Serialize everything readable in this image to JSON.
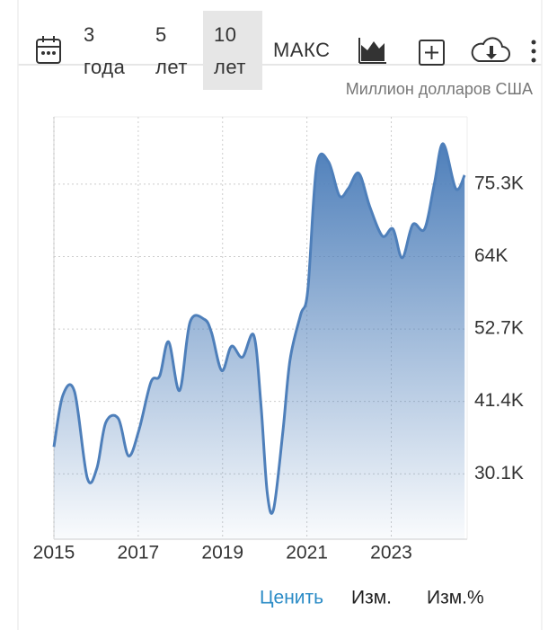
{
  "toolbar": {
    "ranges": [
      [
        "3",
        "года"
      ],
      [
        "5",
        "лет"
      ],
      [
        "10",
        "лет"
      ]
    ],
    "max": "МАКС"
  },
  "chart_data": {
    "type": "area",
    "unit_label": "Миллион долларов США",
    "color": "#4e7fba",
    "x": [
      2015.0,
      2015.21,
      2015.49,
      2015.79,
      2016.02,
      2016.23,
      2016.53,
      2016.77,
      2017.02,
      2017.3,
      2017.51,
      2017.72,
      2017.98,
      2018.23,
      2018.57,
      2018.74,
      2018.98,
      2019.21,
      2019.47,
      2019.74,
      2019.91,
      2020.06,
      2020.21,
      2020.43,
      2020.6,
      2020.85,
      2021.02,
      2021.23,
      2021.51,
      2021.77,
      2021.98,
      2022.23,
      2022.49,
      2022.79,
      2023.04,
      2023.26,
      2023.51,
      2023.79,
      2024.02,
      2024.23,
      2024.53,
      2024.74
    ],
    "values": [
      34300,
      42300,
      42900,
      29500,
      31000,
      38100,
      38700,
      32900,
      37000,
      44400,
      45400,
      50700,
      43100,
      53800,
      54200,
      52100,
      46200,
      50000,
      48300,
      51700,
      40900,
      27100,
      24600,
      36700,
      47900,
      54900,
      58700,
      78100,
      78800,
      73500,
      74600,
      77000,
      71800,
      67200,
      68300,
      63800,
      69000,
      68300,
      75300,
      81600,
      74600,
      76700
    ],
    "xlim": [
      2015,
      2024.8
    ],
    "xticks": [
      2015,
      2017,
      2019,
      2021,
      2023
    ],
    "ylim": [
      19900,
      85800
    ],
    "yticks": [
      {
        "value": 30100,
        "label": "30.1K"
      },
      {
        "value": 41400,
        "label": "41.4K"
      },
      {
        "value": 52700,
        "label": "52.7K"
      },
      {
        "value": 64000,
        "label": "64K"
      },
      {
        "value": 75300,
        "label": "75.3K"
      }
    ],
    "grid": true
  },
  "tabs": [
    "Ценить",
    "Изм.",
    "Изм.%"
  ]
}
